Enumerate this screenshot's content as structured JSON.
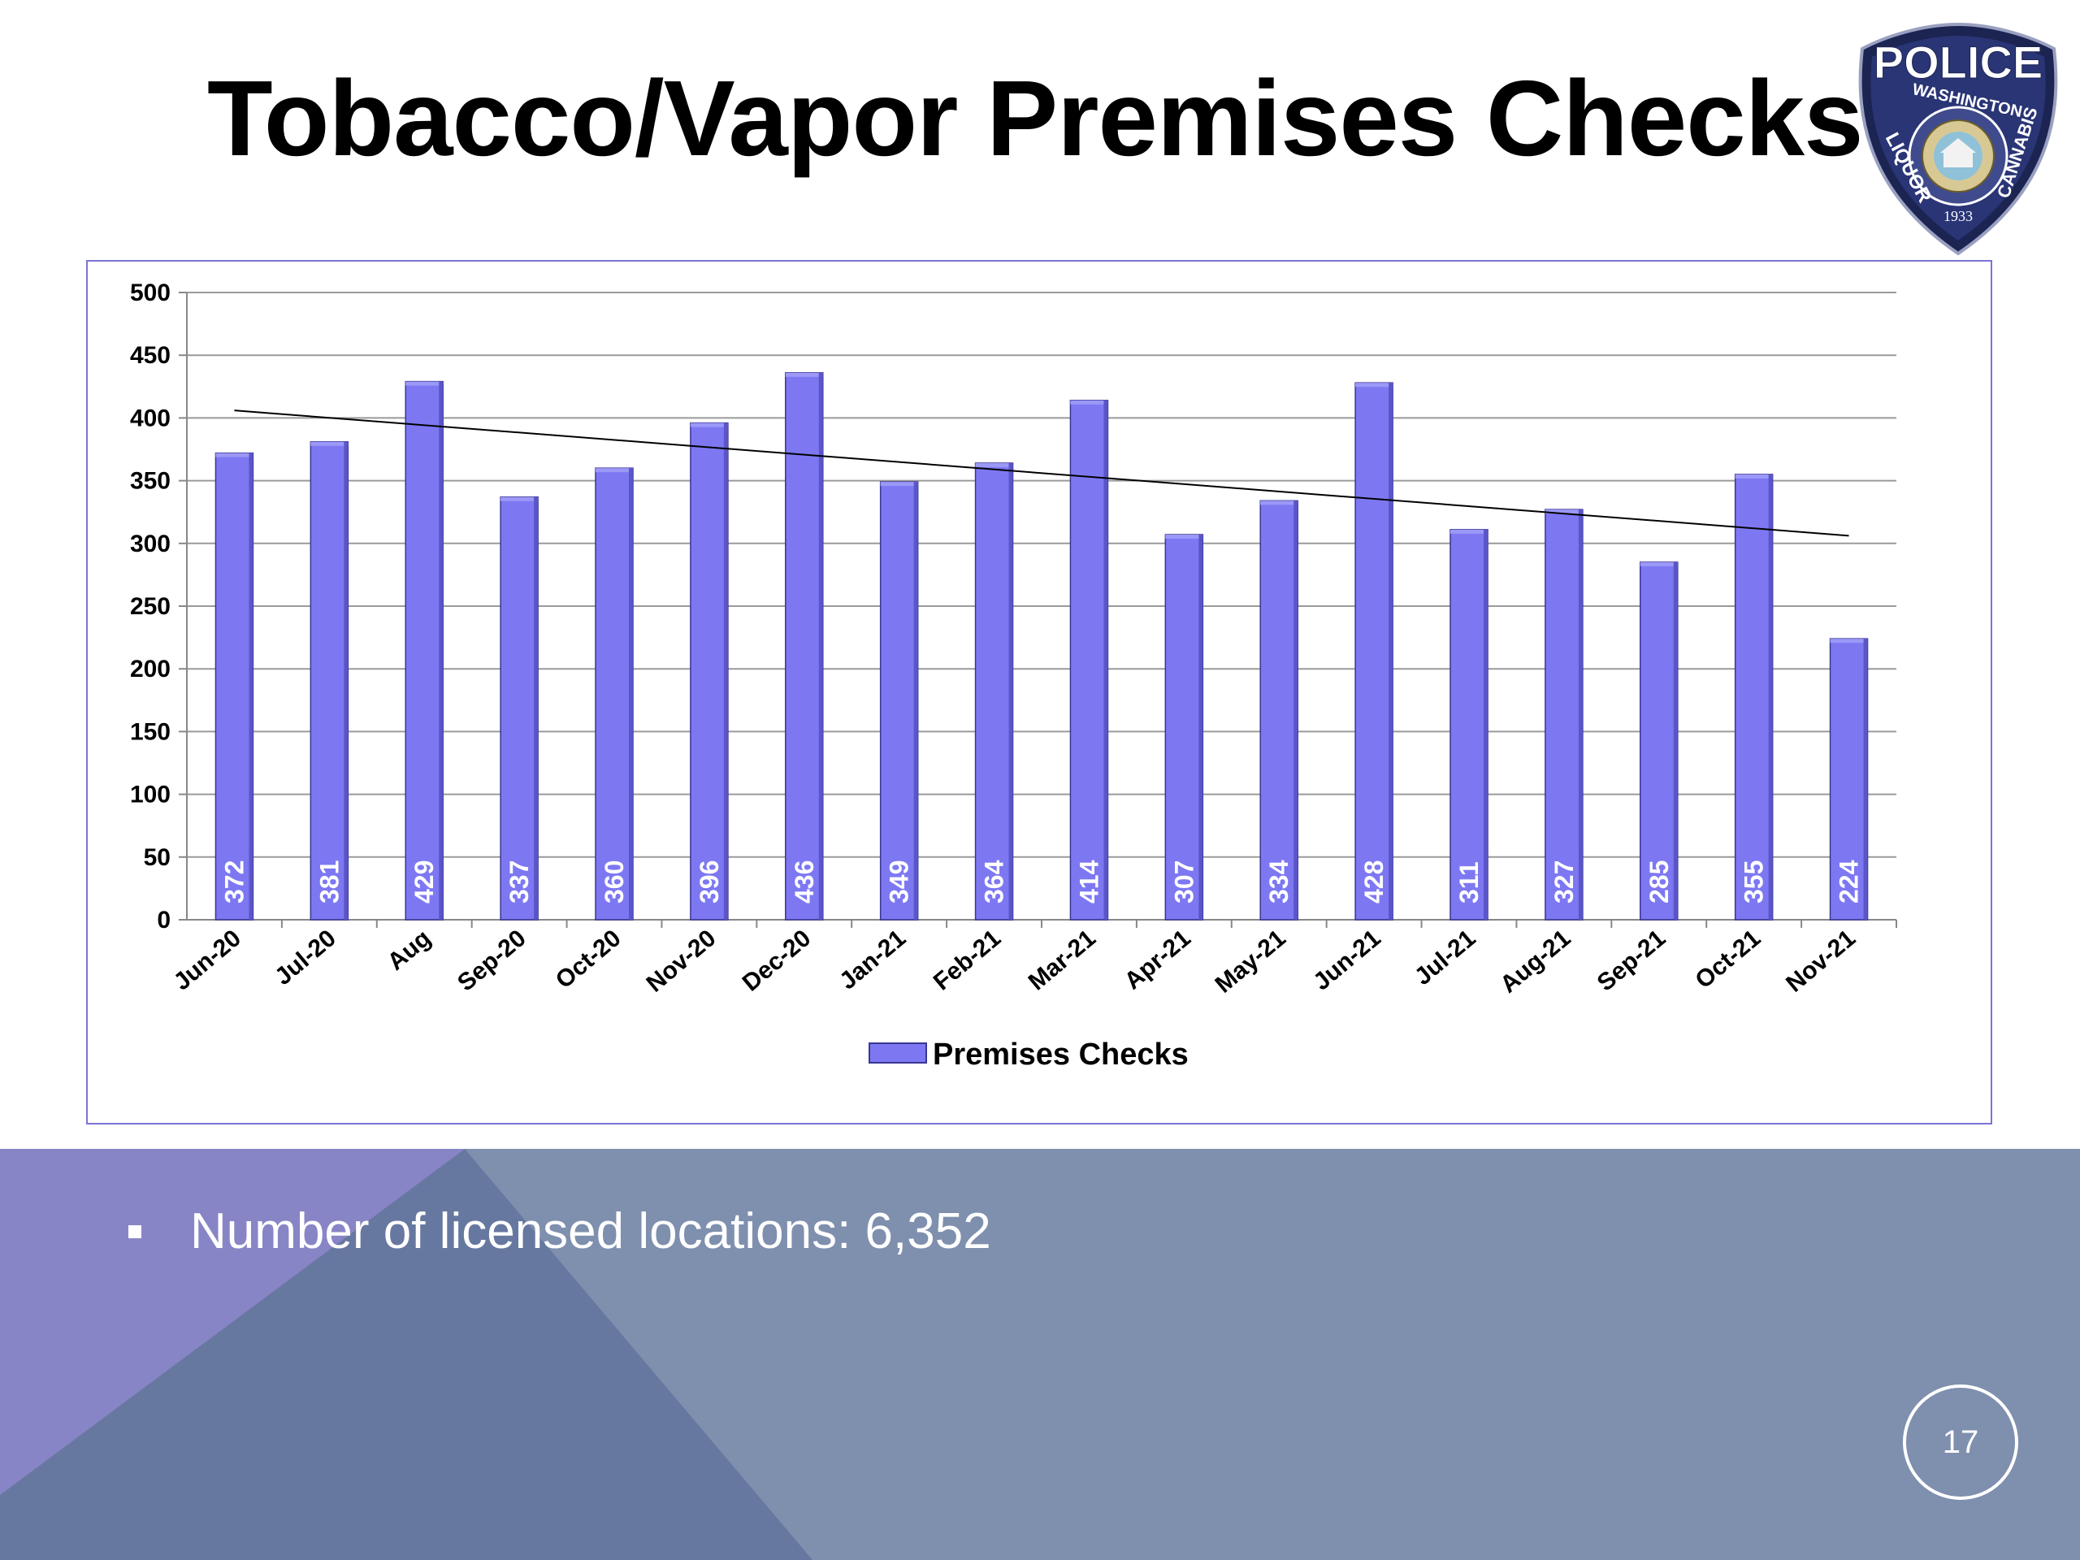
{
  "slide": {
    "title": "Tobacco/Vapor Premises Checks",
    "bullet": "Number of licensed locations: 6,352",
    "page_number": "17"
  },
  "badge": {
    "top_text": "POLICE",
    "state": "WASHINGTON",
    "left_text": "LIQUOR",
    "right_text": "CANNABIS",
    "year": "1933"
  },
  "colors": {
    "bar_fill": "#7d78f2",
    "bar_top": "#9c98f8",
    "trendline": "#000000",
    "frame": "#7b74d6",
    "footer_blue": "#7f8fae",
    "footer_purple": "#8885c6",
    "footer_dark": "#6778a0"
  },
  "chart_data": {
    "type": "bar",
    "categories": [
      "Jun-20",
      "Jul-20",
      "Aug",
      "Sep-20",
      "Oct-20",
      "Nov-20",
      "Dec-20",
      "Jan-21",
      "Feb-21",
      "Mar-21",
      "Apr-21",
      "May-21",
      "Jun-21",
      "Jul-21",
      "Aug-21",
      "Sep-21",
      "Oct-21",
      "Nov-21"
    ],
    "series": [
      {
        "name": "Premises Checks",
        "values": [
          372,
          381,
          429,
          337,
          360,
          396,
          436,
          349,
          364,
          414,
          307,
          334,
          428,
          311,
          327,
          285,
          355,
          224
        ]
      }
    ],
    "trendline": "linear",
    "ylim": [
      0,
      500
    ],
    "yticks": [
      0,
      50,
      100,
      150,
      200,
      250,
      300,
      350,
      400,
      450,
      500
    ],
    "grid": true,
    "legend_position": "bottom"
  }
}
